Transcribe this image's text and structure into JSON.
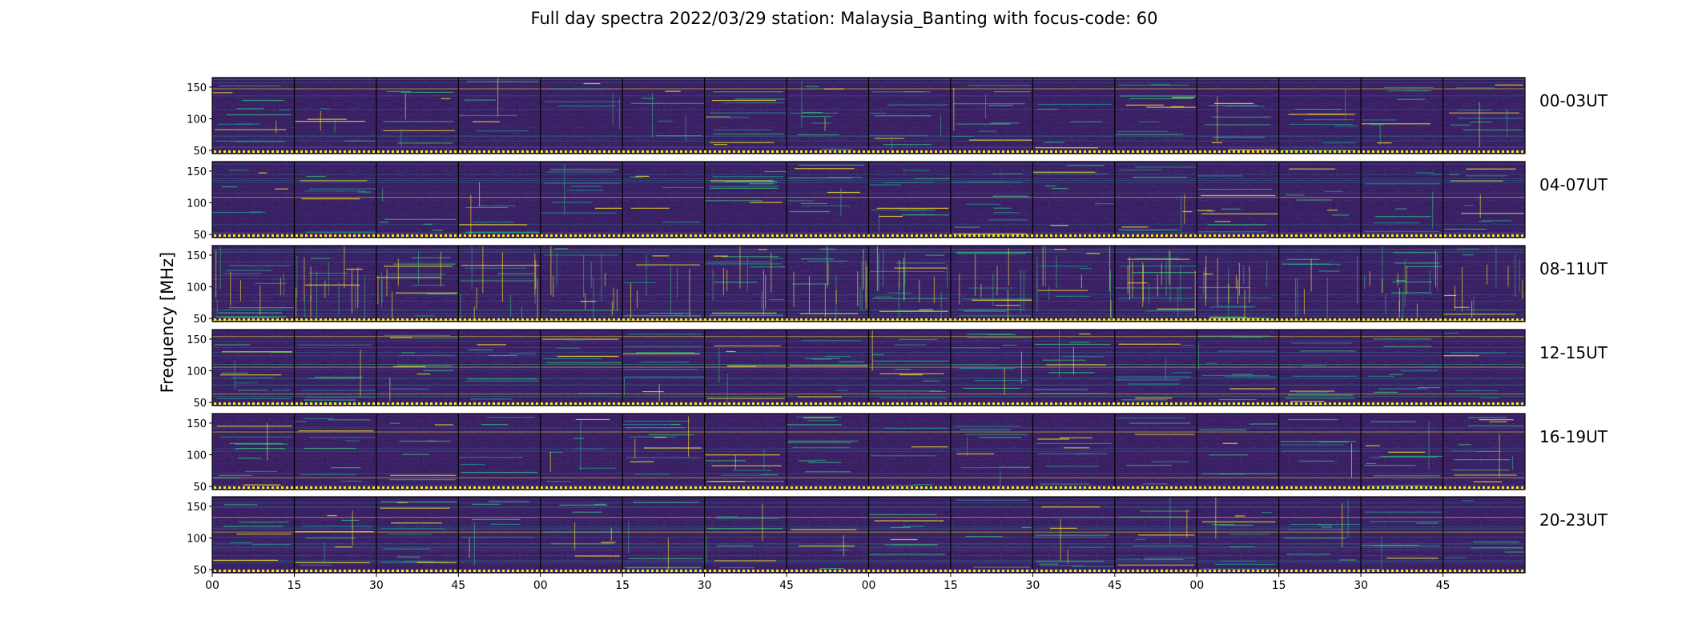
{
  "title": "Full day spectra 2022/03/29 station: Malaysia_Banting with focus-code: 60",
  "chart_data": {
    "type": "heatmap",
    "title": "Full day spectra 2022/03/29 station: Malaysia_Banting with focus-code: 60",
    "ylabel": "Frequency [MHz]",
    "xlabel": "",
    "ylim": [
      45,
      165
    ],
    "yticks": [
      50,
      100,
      150
    ],
    "xticks": [
      "00",
      "15",
      "30",
      "45",
      "00",
      "15",
      "30",
      "45",
      "00",
      "15",
      "30",
      "45",
      "00",
      "15",
      "30",
      "45"
    ],
    "segments_per_row": 16,
    "minutes_per_segment": 15,
    "colormap": "viridis",
    "grid": false,
    "rows": [
      {
        "label": "00-03UT"
      },
      {
        "label": "04-07UT"
      },
      {
        "label": "08-11UT"
      },
      {
        "label": "12-15UT"
      },
      {
        "label": "16-19UT"
      },
      {
        "label": "20-23UT"
      }
    ]
  }
}
